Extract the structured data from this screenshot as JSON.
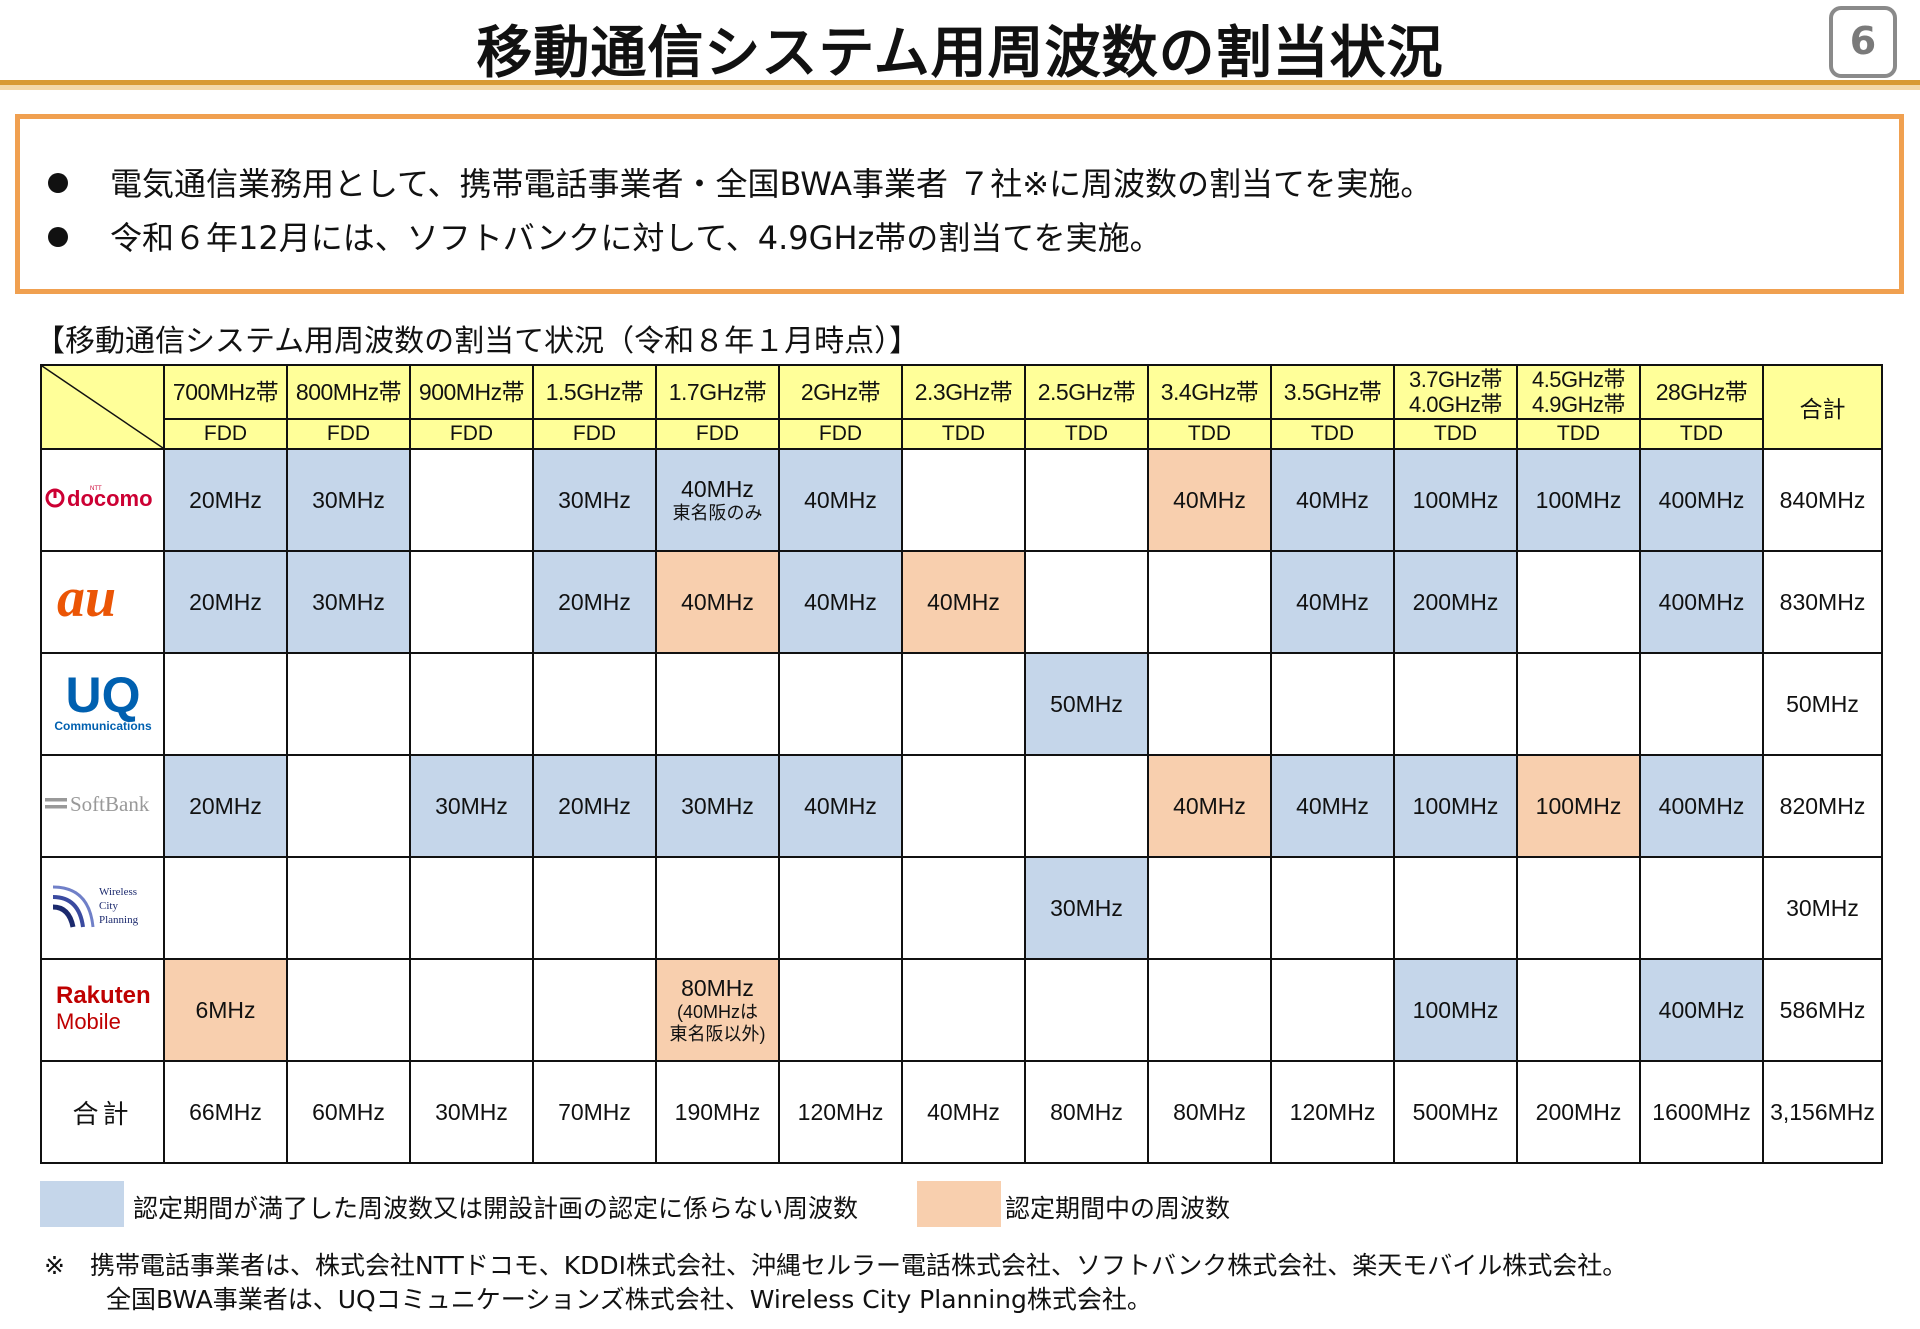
{
  "header": {
    "title": "移動通信システム用周波数の割当状況",
    "page_number": "6"
  },
  "summary": {
    "bullets": [
      "電気通信業務用として、携帯電話事業者・全国BWA事業者 ７社※に周波数の割当てを実施。",
      "令和６年12月には、ソフトバンクに対して、4.9GHz帯の割当てを実施。"
    ]
  },
  "table_caption": "【移動通信システム用周波数の割当て状況（令和８年１月時点）】",
  "table": {
    "bands": [
      {
        "band": "700MHz帯",
        "duplex": "FDD"
      },
      {
        "band": "800MHz帯",
        "duplex": "FDD"
      },
      {
        "band": "900MHz帯",
        "duplex": "FDD"
      },
      {
        "band": "1.5GHz帯",
        "duplex": "FDD"
      },
      {
        "band": "1.7GHz帯",
        "duplex": "FDD"
      },
      {
        "band": "2GHz帯",
        "duplex": "FDD"
      },
      {
        "band": "2.3GHz帯",
        "duplex": "TDD"
      },
      {
        "band": "2.5GHz帯",
        "duplex": "TDD"
      },
      {
        "band": "3.4GHz帯",
        "duplex": "TDD"
      },
      {
        "band": "3.5GHz帯",
        "duplex": "TDD"
      },
      {
        "band": "3.7GHz帯",
        "band2": "4.0GHz帯",
        "duplex": "TDD"
      },
      {
        "band": "4.5GHz帯",
        "band2": "4.9GHz帯",
        "duplex": "TDD"
      },
      {
        "band": "28GHz帯",
        "duplex": "TDD"
      }
    ],
    "total_header": "合計",
    "operators": [
      {
        "name": "docomo",
        "logo": "docomo-logo",
        "cells": [
          {
            "v": "20MHz",
            "c": "blue"
          },
          {
            "v": "30MHz",
            "c": "blue"
          },
          {
            "v": "",
            "c": ""
          },
          {
            "v": "30MHz",
            "c": "blue"
          },
          {
            "v": "40MHz",
            "note": "東名阪のみ",
            "c": "blue"
          },
          {
            "v": "40MHz",
            "c": "blue"
          },
          {
            "v": "",
            "c": ""
          },
          {
            "v": "",
            "c": ""
          },
          {
            "v": "40MHz",
            "c": "orange"
          },
          {
            "v": "40MHz",
            "c": "blue"
          },
          {
            "v": "100MHz",
            "c": "blue"
          },
          {
            "v": "100MHz",
            "c": "blue"
          },
          {
            "v": "400MHz",
            "c": "blue"
          }
        ],
        "total": "840MHz"
      },
      {
        "name": "au",
        "logo": "au-logo",
        "cells": [
          {
            "v": "20MHz",
            "c": "blue"
          },
          {
            "v": "30MHz",
            "c": "blue"
          },
          {
            "v": "",
            "c": ""
          },
          {
            "v": "20MHz",
            "c": "blue"
          },
          {
            "v": "40MHz",
            "c": "orange"
          },
          {
            "v": "40MHz",
            "c": "blue"
          },
          {
            "v": "40MHz",
            "c": "orange"
          },
          {
            "v": "",
            "c": ""
          },
          {
            "v": "",
            "c": ""
          },
          {
            "v": "40MHz",
            "c": "blue"
          },
          {
            "v": "200MHz",
            "c": "blue"
          },
          {
            "v": "",
            "c": ""
          },
          {
            "v": "400MHz",
            "c": "blue"
          }
        ],
        "total": "830MHz"
      },
      {
        "name": "UQ",
        "logo": "uq-communications-logo",
        "cells": [
          {
            "v": "",
            "c": ""
          },
          {
            "v": "",
            "c": ""
          },
          {
            "v": "",
            "c": ""
          },
          {
            "v": "",
            "c": ""
          },
          {
            "v": "",
            "c": ""
          },
          {
            "v": "",
            "c": ""
          },
          {
            "v": "",
            "c": ""
          },
          {
            "v": "50MHz",
            "c": "blue"
          },
          {
            "v": "",
            "c": ""
          },
          {
            "v": "",
            "c": ""
          },
          {
            "v": "",
            "c": ""
          },
          {
            "v": "",
            "c": ""
          },
          {
            "v": "",
            "c": ""
          }
        ],
        "total": "50MHz"
      },
      {
        "name": "SoftBank",
        "logo": "softbank-logo",
        "cells": [
          {
            "v": "20MHz",
            "c": "blue"
          },
          {
            "v": "",
            "c": ""
          },
          {
            "v": "30MHz",
            "c": "blue"
          },
          {
            "v": "20MHz",
            "c": "blue"
          },
          {
            "v": "30MHz",
            "c": "blue"
          },
          {
            "v": "40MHz",
            "c": "blue"
          },
          {
            "v": "",
            "c": ""
          },
          {
            "v": "",
            "c": ""
          },
          {
            "v": "40MHz",
            "c": "orange"
          },
          {
            "v": "40MHz",
            "c": "blue"
          },
          {
            "v": "100MHz",
            "c": "blue"
          },
          {
            "v": "100MHz",
            "c": "orange"
          },
          {
            "v": "400MHz",
            "c": "blue"
          }
        ],
        "total": "820MHz"
      },
      {
        "name": "Wireless City Planning",
        "logo": "wireless-city-planning-logo",
        "cells": [
          {
            "v": "",
            "c": ""
          },
          {
            "v": "",
            "c": ""
          },
          {
            "v": "",
            "c": ""
          },
          {
            "v": "",
            "c": ""
          },
          {
            "v": "",
            "c": ""
          },
          {
            "v": "",
            "c": ""
          },
          {
            "v": "",
            "c": ""
          },
          {
            "v": "30MHz",
            "c": "blue"
          },
          {
            "v": "",
            "c": ""
          },
          {
            "v": "",
            "c": ""
          },
          {
            "v": "",
            "c": ""
          },
          {
            "v": "",
            "c": ""
          },
          {
            "v": "",
            "c": ""
          }
        ],
        "total": "30MHz"
      },
      {
        "name": "Rakuten Mobile",
        "logo": "rakuten-mobile-logo",
        "cells": [
          {
            "v": "6MHz",
            "c": "orange"
          },
          {
            "v": "",
            "c": ""
          },
          {
            "v": "",
            "c": ""
          },
          {
            "v": "",
            "c": ""
          },
          {
            "v": "80MHz",
            "note": "(40MHzは",
            "note2": "東名阪以外)",
            "c": "orange"
          },
          {
            "v": "",
            "c": ""
          },
          {
            "v": "",
            "c": ""
          },
          {
            "v": "",
            "c": ""
          },
          {
            "v": "",
            "c": ""
          },
          {
            "v": "",
            "c": ""
          },
          {
            "v": "100MHz",
            "c": "blue"
          },
          {
            "v": "",
            "c": ""
          },
          {
            "v": "400MHz",
            "c": "blue"
          }
        ],
        "total": "586MHz"
      }
    ],
    "totals_row": {
      "label": "合計",
      "values": [
        "66MHz",
        "60MHz",
        "30MHz",
        "70MHz",
        "190MHz",
        "120MHz",
        "40MHz",
        "80MHz",
        "80MHz",
        "120MHz",
        "500MHz",
        "200MHz",
        "1600MHz"
      ],
      "grand_total": "3,156MHz"
    }
  },
  "legend": {
    "blue_label": "認定期間が満了した周波数又は開設計画の認定に係らない周波数",
    "orange_label": "認定期間中の周波数"
  },
  "footnote": {
    "line1": "※　携帯電話事業者は、株式会社NTTドコモ、KDDI株式会社、沖縄セルラー電話株式会社、ソフトバンク株式会社、楽天モバイル株式会社。",
    "line2": "全国BWA事業者は、UQコミュニケーションズ株式会社、Wireless City Planning株式会社。"
  },
  "logos": {
    "docomo": {
      "text": "docomo",
      "small": "NTT",
      "color": "#cc0033"
    },
    "au": {
      "text": "au",
      "color": "#eb5505"
    },
    "uq": {
      "text": "UQ",
      "sub": "Communications",
      "color": "#0060b0"
    },
    "softbank": {
      "text": "SoftBank",
      "color": "#999999"
    },
    "wcp": {
      "line1": "Wireless",
      "line2": "City",
      "line3": "Planning",
      "color": "#1c2a6e"
    },
    "rakuten": {
      "line1": "Rakuten",
      "line2": "Mobile",
      "color": "#bf0000"
    }
  },
  "colors": {
    "assigned_expired": "#c5d6ea",
    "certified_period": "#f8cfae",
    "header_fill": "#ffff99",
    "grand_total": "#ff1a1a",
    "accent": "#f0a050"
  }
}
